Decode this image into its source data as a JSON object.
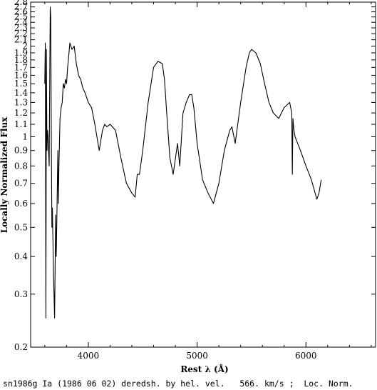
{
  "chart_data": {
    "type": "line",
    "title": "",
    "xlabel": "Rest λ (Å)",
    "ylabel": "Locally Normalized Flux",
    "caption": "sn1986g Ia (1986 06 02) deredsh. by hel. vel.   566. km/s ;  Loc. Norm.",
    "xlim": [
      3470,
      6640
    ],
    "ylim": [
      0.2,
      2.8
    ],
    "yscale": "log",
    "x_ticks": [
      4000,
      5000,
      6000
    ],
    "x_tick_labels": [
      "4000",
      "5000",
      "6000"
    ],
    "y_ticks": [
      0.2,
      0.3,
      0.4,
      0.5,
      0.6,
      0.7,
      0.8,
      0.9,
      1,
      1.1,
      1.2,
      1.3,
      1.4,
      1.5,
      1.6,
      1.7,
      1.8,
      1.9,
      2,
      2.1,
      2.2,
      2.3,
      2.4,
      2.5,
      2.6,
      2.7,
      2.8
    ],
    "y_tick_labels": [
      "0.2",
      "0.3",
      "0.4",
      "0.5",
      "0.6",
      "0.7",
      "0.8",
      "0.9",
      "1",
      "1.1",
      "1.2",
      "1.3",
      "1.4",
      "1.5",
      "1.6",
      "1.7",
      "1.8",
      "1.9",
      "2",
      "2.1",
      "2.2",
      "2.3",
      "2.4",
      "2.5",
      "2.6",
      "2.7",
      "2.8"
    ],
    "grid": false,
    "series": [
      {
        "color": "#000000",
        "x": [
          3600,
          3605,
          3610,
          3615,
          3620,
          3625,
          3630,
          3640,
          3650,
          3655,
          3660,
          3665,
          3670,
          3675,
          3680,
          3690,
          3700,
          3705,
          3710,
          3720,
          3725,
          3730,
          3740,
          3750,
          3760,
          3770,
          3780,
          3790,
          3800,
          3810,
          3820,
          3830,
          3850,
          3870,
          3890,
          3910,
          3930,
          3950,
          3970,
          4000,
          4030,
          4060,
          4100,
          4130,
          4150,
          4170,
          4200,
          4250,
          4300,
          4350,
          4400,
          4430,
          4450,
          4470,
          4500,
          4550,
          4600,
          4640,
          4680,
          4700,
          4720,
          4750,
          4780,
          4820,
          4840,
          4870,
          4900,
          4930,
          4950,
          4970,
          5000,
          5050,
          5100,
          5150,
          5200,
          5250,
          5300,
          5320,
          5350,
          5400,
          5450,
          5480,
          5500,
          5540,
          5580,
          5620,
          5660,
          5700,
          5750,
          5800,
          5850,
          5870,
          5875,
          5880,
          5890,
          5900,
          5950,
          6000,
          6050,
          6100,
          6120,
          6140
        ],
        "y": [
          1.5,
          2.05,
          0.25,
          1.95,
          0.9,
          1.05,
          1.0,
          0.8,
          2.7,
          2.5,
          1.0,
          0.5,
          0.58,
          0.45,
          0.35,
          0.25,
          0.55,
          0.4,
          0.5,
          0.9,
          0.6,
          0.8,
          1.15,
          1.25,
          1.3,
          1.5,
          1.45,
          1.55,
          1.5,
          1.7,
          1.85,
          2.05,
          1.95,
          2.0,
          1.75,
          1.6,
          1.55,
          1.45,
          1.4,
          1.3,
          1.25,
          1.1,
          0.9,
          1.05,
          1.1,
          1.08,
          1.1,
          1.05,
          0.85,
          0.7,
          0.65,
          0.63,
          0.75,
          0.75,
          0.9,
          1.3,
          1.7,
          1.78,
          1.75,
          1.55,
          1.2,
          0.85,
          0.75,
          0.95,
          0.8,
          1.2,
          1.3,
          1.38,
          1.38,
          1.25,
          0.95,
          0.72,
          0.65,
          0.6,
          0.7,
          0.9,
          1.05,
          1.08,
          0.95,
          1.3,
          1.7,
          1.9,
          1.95,
          1.9,
          1.75,
          1.5,
          1.3,
          1.2,
          1.15,
          1.25,
          1.3,
          1.2,
          0.75,
          1.15,
          1.05,
          1.0,
          0.9,
          0.8,
          0.72,
          0.62,
          0.65,
          0.72
        ]
      }
    ]
  }
}
